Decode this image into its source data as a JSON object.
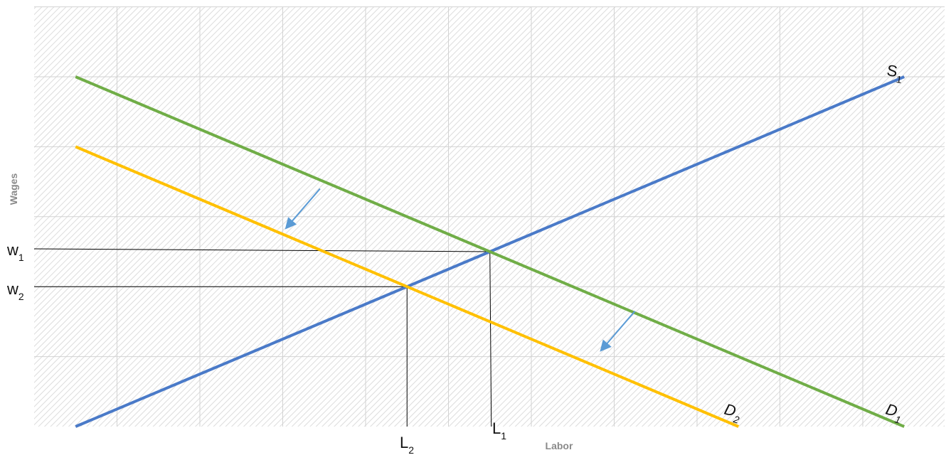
{
  "chart_data": {
    "type": "line",
    "title": "",
    "xlabel": "Labor",
    "ylabel": "Wages",
    "xlim": [
      0,
      10
    ],
    "ylim": [
      0,
      6
    ],
    "grid": true,
    "colors": {
      "S": "#4a7ac8",
      "D1": "#70ad47",
      "D2": "#ffc000",
      "guides": "#000000",
      "arrows": "#5b9bd5"
    },
    "series": [
      {
        "name": "S1",
        "base": "S",
        "sub": "1",
        "color": "#4a7ac8",
        "points": [
          [
            0.5,
            0
          ],
          [
            10.5,
            5
          ]
        ]
      },
      {
        "name": "D1",
        "base": "D",
        "sub": "1",
        "color": "#70ad47",
        "points": [
          [
            0.5,
            5
          ],
          [
            10.5,
            0
          ]
        ]
      },
      {
        "name": "D2",
        "base": "D",
        "sub": "2",
        "color": "#ffc000",
        "points": [
          [
            0.5,
            4
          ],
          [
            8.5,
            0
          ]
        ]
      }
    ],
    "equilibria": [
      {
        "w_label": {
          "base": "w",
          "sub": "1"
        },
        "l_label": {
          "base": "L",
          "sub": "1"
        },
        "x": 5.5,
        "y": 2.5
      },
      {
        "w_label": {
          "base": "w",
          "sub": "2"
        },
        "l_label": {
          "base": "L",
          "sub": "2"
        },
        "x": 4.5,
        "y": 2.0
      }
    ],
    "shift_arrows": [
      {
        "from": [
          3.45,
          3.4
        ],
        "to": [
          3.05,
          2.85
        ]
      },
      {
        "from": [
          7.25,
          1.65
        ],
        "to": [
          6.85,
          1.1
        ]
      }
    ]
  }
}
